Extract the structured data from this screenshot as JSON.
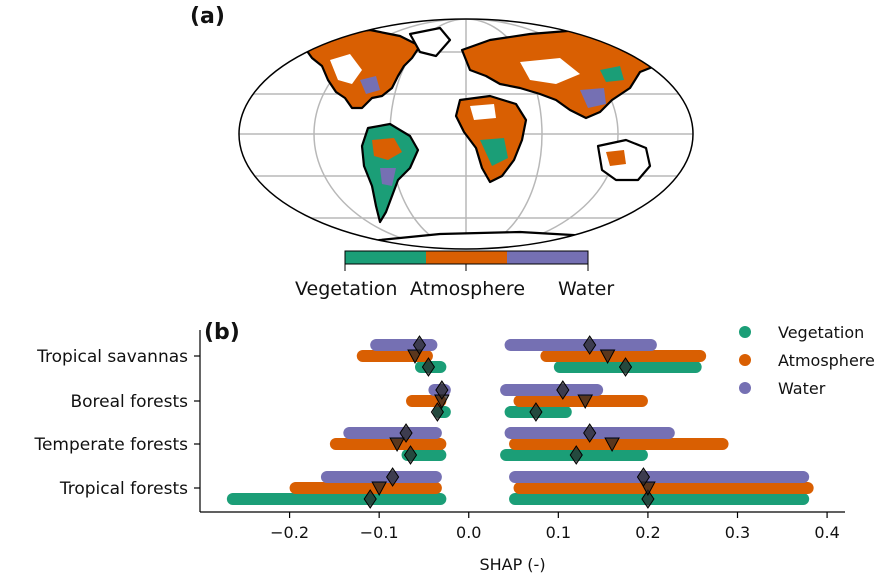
{
  "panel_a": {
    "label": "(a)",
    "colorbar": {
      "labels": [
        "Vegetation",
        "Atmosphere",
        "Water"
      ],
      "colors": [
        "#1b9e77",
        "#d95f02",
        "#7570b3"
      ]
    }
  },
  "panel_b": {
    "label": "(b)"
  },
  "chart_data": {
    "type": "scatter",
    "xlabel": "SHAP (-)",
    "ylabel": "",
    "xlim": [
      -0.3,
      0.42
    ],
    "xticks": [
      -0.2,
      -0.1,
      0.0,
      0.1,
      0.2,
      0.3,
      0.4
    ],
    "xtick_labels": [
      "−0.2",
      "−0.1",
      "0.0",
      "0.1",
      "0.2",
      "0.3",
      "0.4"
    ],
    "categories": [
      "Tropical savannas",
      "Boreal forests",
      "Temperate forests",
      "Tropical forests"
    ],
    "legend": {
      "placement": "top-right",
      "entries": [
        "Vegetation",
        "Atmosphere",
        "Water"
      ]
    },
    "series": [
      {
        "name": "Vegetation",
        "color": "#1b9e77",
        "neg_range": [
          [
            -0.06,
            -0.025
          ],
          [
            -0.04,
            -0.02
          ],
          [
            -0.075,
            -0.025
          ],
          [
            -0.27,
            -0.025
          ]
        ],
        "pos_range": [
          [
            0.095,
            0.26
          ],
          [
            0.04,
            0.115
          ],
          [
            0.035,
            0.2
          ],
          [
            0.045,
            0.38
          ]
        ],
        "neg_mean": [
          -0.045,
          -0.035,
          -0.065,
          -0.11
        ],
        "pos_mean": [
          0.175,
          0.075,
          0.12,
          0.2
        ]
      },
      {
        "name": "Atmosphere",
        "color": "#d95f02",
        "neg_range": [
          [
            -0.125,
            -0.04
          ],
          [
            -0.07,
            -0.025
          ],
          [
            -0.155,
            -0.025
          ],
          [
            -0.2,
            -0.03
          ]
        ],
        "pos_range": [
          [
            0.08,
            0.265
          ],
          [
            0.05,
            0.2
          ],
          [
            0.045,
            0.29
          ],
          [
            0.05,
            0.385
          ]
        ],
        "neg_mean": [
          -0.06,
          -0.03,
          -0.08,
          -0.1
        ],
        "pos_mean": [
          0.155,
          0.13,
          0.16,
          0.2
        ]
      },
      {
        "name": "Water",
        "color": "#7570b3",
        "neg_range": [
          [
            -0.11,
            -0.035
          ],
          [
            -0.045,
            -0.02
          ],
          [
            -0.14,
            -0.03
          ],
          [
            -0.165,
            -0.03
          ]
        ],
        "pos_range": [
          [
            0.04,
            0.21
          ],
          [
            0.035,
            0.15
          ],
          [
            0.04,
            0.23
          ],
          [
            0.045,
            0.38
          ]
        ],
        "neg_mean": [
          -0.055,
          -0.03,
          -0.07,
          -0.085
        ],
        "pos_mean": [
          0.135,
          0.105,
          0.135,
          0.195
        ]
      }
    ]
  }
}
